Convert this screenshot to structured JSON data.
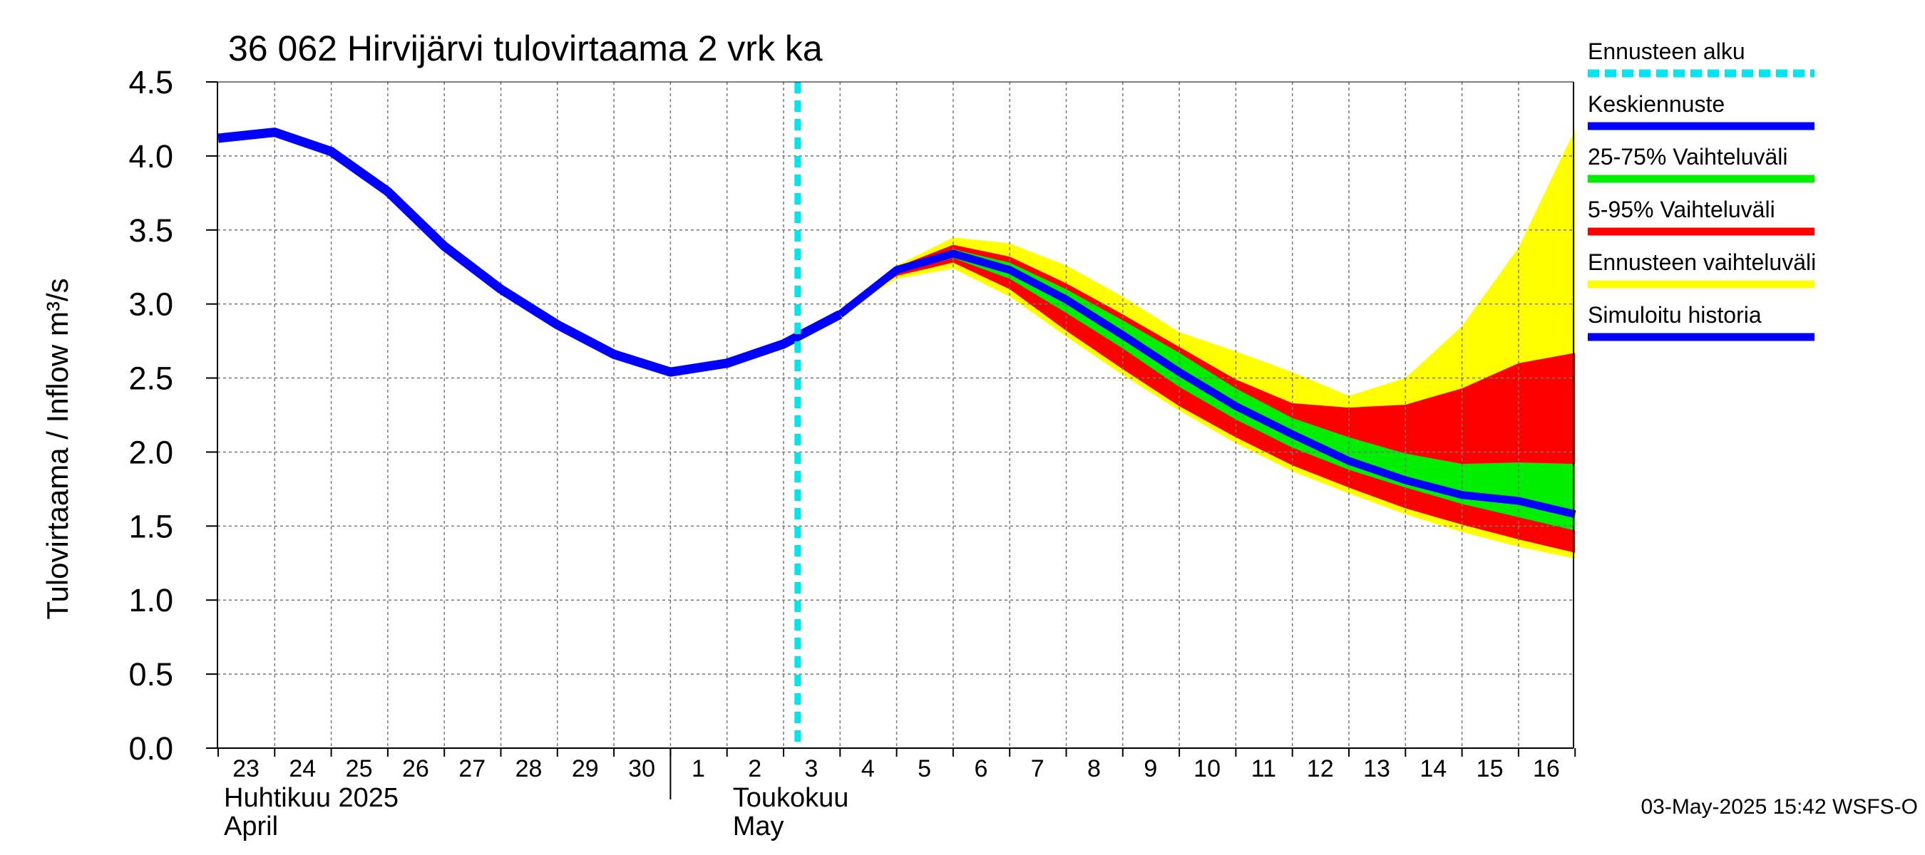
{
  "chart_data": {
    "type": "area",
    "title": "36 062 Hirvijärvi tulovirtaama 2 vrk ka",
    "ylabel": "Tulovirtaama / Inflow    m³/s",
    "ylim": [
      0,
      4.5
    ],
    "yticks": [
      "0.0",
      "0.5",
      "1.0",
      "1.5",
      "2.0",
      "2.5",
      "3.0",
      "3.5",
      "4.0",
      "4.5"
    ],
    "x_tick_labels": [
      "23",
      "24",
      "25",
      "26",
      "27",
      "28",
      "29",
      "30",
      "1",
      "2",
      "3",
      "4",
      "5",
      "6",
      "7",
      "8",
      "9",
      "10",
      "11",
      "12",
      "13",
      "14",
      "15",
      "16"
    ],
    "x_range_days": [
      0,
      24
    ],
    "month_labels": [
      {
        "line1": "Huhtikuu  2025",
        "line2": "April",
        "day": 0
      },
      {
        "line1": "Toukokuu",
        "line2": "May",
        "day": 9
      }
    ],
    "month_divider_day": 8,
    "forecast_start_day": 10.25,
    "grid": true,
    "history": {
      "name": "Simuloitu historia",
      "x": [
        0,
        1,
        2,
        3,
        4,
        5,
        6,
        7,
        8,
        9,
        10,
        11
      ],
      "y": [
        4.12,
        4.16,
        4.03,
        3.76,
        3.39,
        3.1,
        2.86,
        2.66,
        2.54,
        2.6,
        2.73,
        2.93
      ]
    },
    "forecast_x": [
      11,
      12,
      13,
      14,
      15,
      16,
      17,
      18,
      19,
      20,
      21,
      22,
      23,
      24
    ],
    "bands": [
      {
        "name": "Ennusteen vaihteluväli",
        "color": "#ffff00",
        "upper": [
          2.93,
          3.26,
          3.45,
          3.41,
          3.26,
          3.05,
          2.81,
          2.68,
          2.54,
          2.38,
          2.5,
          2.85,
          3.38,
          4.18
        ],
        "lower": [
          2.93,
          3.17,
          3.24,
          3.05,
          2.78,
          2.52,
          2.28,
          2.06,
          1.87,
          1.72,
          1.58,
          1.46,
          1.36,
          1.28
        ]
      },
      {
        "name": "5-95% Vaihteluväli",
        "color": "#ff0000",
        "upper": [
          2.93,
          3.25,
          3.4,
          3.32,
          3.14,
          2.93,
          2.71,
          2.49,
          2.33,
          2.3,
          2.32,
          2.43,
          2.6,
          2.67
        ],
        "lower": [
          2.93,
          3.19,
          3.28,
          3.1,
          2.82,
          2.56,
          2.31,
          2.1,
          1.91,
          1.76,
          1.62,
          1.51,
          1.41,
          1.32
        ]
      },
      {
        "name": "25-75% Vaihteluväli",
        "color": "#00ee00",
        "upper": [
          2.93,
          3.24,
          3.37,
          3.28,
          3.1,
          2.89,
          2.67,
          2.43,
          2.23,
          2.1,
          1.99,
          1.92,
          1.93,
          1.92
        ],
        "lower": [
          2.93,
          3.21,
          3.31,
          3.17,
          2.94,
          2.7,
          2.44,
          2.22,
          2.03,
          1.88,
          1.76,
          1.65,
          1.56,
          1.47
        ]
      }
    ],
    "median": {
      "name": "Keskiennuste",
      "y": [
        2.93,
        3.23,
        3.34,
        3.23,
        3.03,
        2.79,
        2.54,
        2.31,
        2.12,
        1.94,
        1.81,
        1.71,
        1.67,
        1.58
      ]
    },
    "legend": [
      {
        "label": "Ennusteen alku",
        "color": "#00e5ee",
        "style": "dashed"
      },
      {
        "label": "Keskiennuste",
        "color": "#0000ff",
        "style": "line"
      },
      {
        "label": "25-75% Vaihteluväli",
        "color": "#00ee00",
        "style": "line"
      },
      {
        "label": "5-95% Vaihteluväli",
        "color": "#ff0000",
        "style": "line"
      },
      {
        "label": "Ennusteen vaihteluväli",
        "color": "#ffff00",
        "style": "line"
      },
      {
        "label": "Simuloitu historia",
        "color": "#0000ff",
        "style": "line"
      }
    ],
    "legend_position": "right",
    "footer": "03-May-2025 15:42 WSFS-O"
  }
}
